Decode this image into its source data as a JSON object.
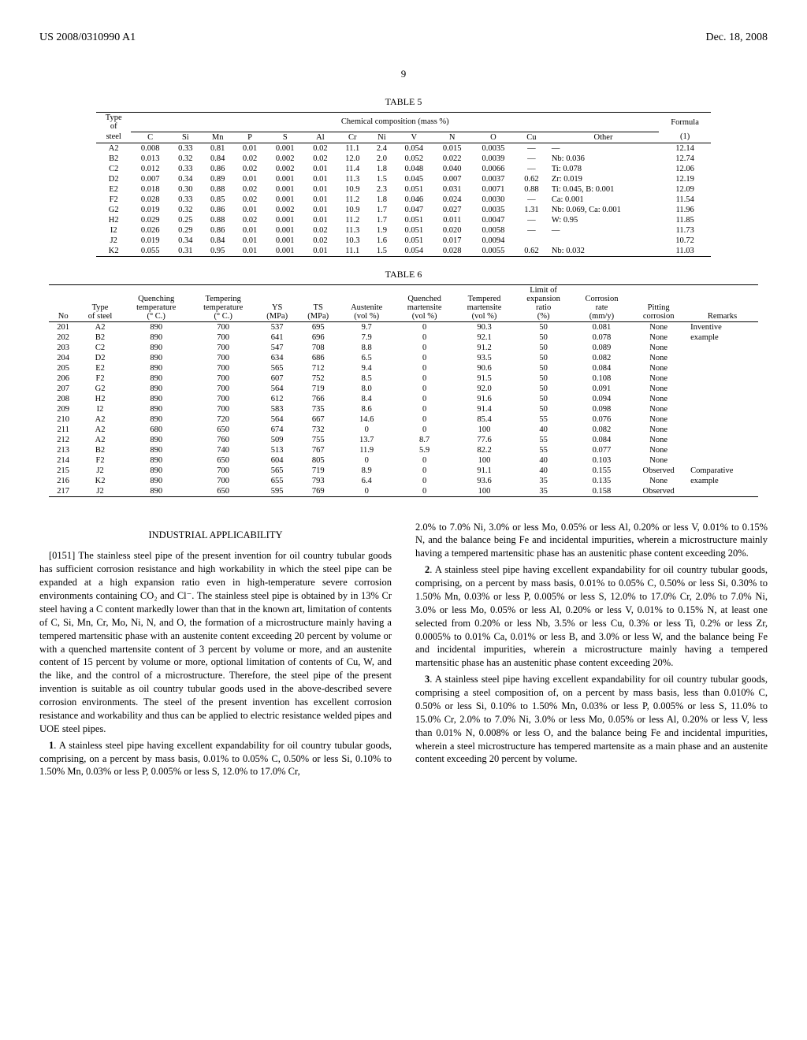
{
  "header": {
    "left": "US 2008/0310990 A1",
    "right": "Dec. 18, 2008"
  },
  "page_number": "9",
  "table5": {
    "caption": "TABLE 5",
    "group_header": "Chemical composition (mass %)",
    "formula_header": "Formula",
    "columns": [
      "Type of steel",
      "C",
      "Si",
      "Mn",
      "P",
      "S",
      "Al",
      "Cr",
      "Ni",
      "V",
      "N",
      "O",
      "Cu",
      "Other",
      "(1)"
    ],
    "rows": [
      [
        "A2",
        "0.008",
        "0.33",
        "0.81",
        "0.01",
        "0.001",
        "0.02",
        "11.1",
        "2.4",
        "0.054",
        "0.015",
        "0.0035",
        "—",
        "—",
        "12.14"
      ],
      [
        "B2",
        "0.013",
        "0.32",
        "0.84",
        "0.02",
        "0.002",
        "0.02",
        "12.0",
        "2.0",
        "0.052",
        "0.022",
        "0.0039",
        "—",
        "Nb: 0.036",
        "12.74"
      ],
      [
        "C2",
        "0.012",
        "0.33",
        "0.86",
        "0.02",
        "0.002",
        "0.01",
        "11.4",
        "1.8",
        "0.048",
        "0.040",
        "0.0066",
        "—",
        "Ti: 0.078",
        "12.06"
      ],
      [
        "D2",
        "0.007",
        "0.34",
        "0.89",
        "0.01",
        "0.001",
        "0.01",
        "11.3",
        "1.5",
        "0.045",
        "0.007",
        "0.0037",
        "0.62",
        "Zr: 0.019",
        "12.19"
      ],
      [
        "E2",
        "0.018",
        "0.30",
        "0.88",
        "0.02",
        "0.001",
        "0.01",
        "10.9",
        "2.3",
        "0.051",
        "0.031",
        "0.0071",
        "0.88",
        "Ti: 0.045, B: 0.001",
        "12.09"
      ],
      [
        "F2",
        "0.028",
        "0.33",
        "0.85",
        "0.02",
        "0.001",
        "0.01",
        "11.2",
        "1.8",
        "0.046",
        "0.024",
        "0.0030",
        "—",
        "Ca: 0.001",
        "11.54"
      ],
      [
        "G2",
        "0.019",
        "0.32",
        "0.86",
        "0.01",
        "0.002",
        "0.01",
        "10.9",
        "1.7",
        "0.047",
        "0.027",
        "0.0035",
        "1.31",
        "Nb: 0.069, Ca: 0.001",
        "11.96"
      ],
      [
        "H2",
        "0.029",
        "0.25",
        "0.88",
        "0.02",
        "0.001",
        "0.01",
        "11.2",
        "1.7",
        "0.051",
        "0.011",
        "0.0047",
        "—",
        "W: 0.95",
        "11.85"
      ],
      [
        "I2",
        "0.026",
        "0.29",
        "0.86",
        "0.01",
        "0.001",
        "0.02",
        "11.3",
        "1.9",
        "0.051",
        "0.020",
        "0.0058",
        "—",
        "—",
        "11.73"
      ],
      [
        "J2",
        "0.019",
        "0.34",
        "0.84",
        "0.01",
        "0.001",
        "0.02",
        "10.3",
        "1.6",
        "0.051",
        "0.017",
        "0.0094",
        "",
        "",
        "10.72"
      ],
      [
        "K2",
        "0.055",
        "0.31",
        "0.95",
        "0.01",
        "0.001",
        "0.01",
        "11.1",
        "1.5",
        "0.054",
        "0.028",
        "0.0055",
        "0.62",
        "Nb: 0.032",
        "11.03"
      ]
    ]
  },
  "table6": {
    "caption": "TABLE 6",
    "columns": [
      "No",
      "Type of steel",
      "Quenching temperature (° C.)",
      "Tempering temperature (° C.)",
      "YS (MPa)",
      "TS (MPa)",
      "Austenite (vol %)",
      "Quenched martensite (vol %)",
      "Tempered martensite (vol %)",
      "Limit of expansion ratio (%)",
      "Corrosion rate (mm/y)",
      "Pitting corrosion",
      "Remarks"
    ],
    "rows": [
      [
        "201",
        "A2",
        "890",
        "700",
        "537",
        "695",
        "9.7",
        "0",
        "90.3",
        "50",
        "0.081",
        "None",
        "Inventive"
      ],
      [
        "202",
        "B2",
        "890",
        "700",
        "641",
        "696",
        "7.9",
        "0",
        "92.1",
        "50",
        "0.078",
        "None",
        "example"
      ],
      [
        "203",
        "C2",
        "890",
        "700",
        "547",
        "708",
        "8.8",
        "0",
        "91.2",
        "50",
        "0.089",
        "None",
        ""
      ],
      [
        "204",
        "D2",
        "890",
        "700",
        "634",
        "686",
        "6.5",
        "0",
        "93.5",
        "50",
        "0.082",
        "None",
        ""
      ],
      [
        "205",
        "E2",
        "890",
        "700",
        "565",
        "712",
        "9.4",
        "0",
        "90.6",
        "50",
        "0.084",
        "None",
        ""
      ],
      [
        "206",
        "F2",
        "890",
        "700",
        "607",
        "752",
        "8.5",
        "0",
        "91.5",
        "50",
        "0.108",
        "None",
        ""
      ],
      [
        "207",
        "G2",
        "890",
        "700",
        "564",
        "719",
        "8.0",
        "0",
        "92.0",
        "50",
        "0.091",
        "None",
        ""
      ],
      [
        "208",
        "H2",
        "890",
        "700",
        "612",
        "766",
        "8.4",
        "0",
        "91.6",
        "50",
        "0.094",
        "None",
        ""
      ],
      [
        "209",
        "I2",
        "890",
        "700",
        "583",
        "735",
        "8.6",
        "0",
        "91.4",
        "50",
        "0.098",
        "None",
        ""
      ],
      [
        "210",
        "A2",
        "890",
        "720",
        "564",
        "667",
        "14.6",
        "0",
        "85.4",
        "55",
        "0.076",
        "None",
        ""
      ],
      [
        "211",
        "A2",
        "680",
        "650",
        "674",
        "732",
        "0",
        "0",
        "100",
        "40",
        "0.082",
        "None",
        ""
      ],
      [
        "212",
        "A2",
        "890",
        "760",
        "509",
        "755",
        "13.7",
        "8.7",
        "77.6",
        "55",
        "0.084",
        "None",
        ""
      ],
      [
        "213",
        "B2",
        "890",
        "740",
        "513",
        "767",
        "11.9",
        "5.9",
        "82.2",
        "55",
        "0.077",
        "None",
        ""
      ],
      [
        "214",
        "F2",
        "890",
        "650",
        "604",
        "805",
        "0",
        "0",
        "100",
        "40",
        "0.103",
        "None",
        ""
      ],
      [
        "215",
        "J2",
        "890",
        "700",
        "565",
        "719",
        "8.9",
        "0",
        "91.1",
        "40",
        "0.155",
        "Observed",
        "Comparative"
      ],
      [
        "216",
        "K2",
        "890",
        "700",
        "655",
        "793",
        "6.4",
        "0",
        "93.6",
        "35",
        "0.135",
        "None",
        "example"
      ],
      [
        "217",
        "J2",
        "890",
        "650",
        "595",
        "769",
        "0",
        "0",
        "100",
        "35",
        "0.158",
        "Observed",
        ""
      ]
    ]
  },
  "body": {
    "section_heading": "INDUSTRIAL APPLICABILITY",
    "para_0151_label": "[0151]",
    "para_0151": "The stainless steel pipe of the present invention for oil country tubular goods has sufficient corrosion resistance and high workability in which the steel pipe can be expanded at a high expansion ratio even in high-temperature severe corrosion environments containing CO₂ and Cl⁻. The stainless steel pipe is obtained by in 13% Cr steel having a C content markedly lower than that in the known art, limitation of contents of C, Si, Mn, Cr, Mo, Ni, N, and O, the formation of a microstructure mainly having a tempered martensitic phase with an austenite content exceeding 20 percent by volume or with a quenched martensite content of 3 percent by volume or more, and an austenite content of 15 percent by volume or more, optional limitation of contents of Cu, W, and the like, and the control of a microstructure. Therefore, the steel pipe of the present invention is suitable as oil country tubular goods used in the above-described severe corrosion environments. The steel of the present invention has excellent corrosion resistance and workability and thus can be applied to electric resistance welded pipes and UOE steel pipes.",
    "claim1_num": "1",
    "claim1": ". A stainless steel pipe having excellent expandability for oil country tubular goods, comprising, on a percent by mass basis, 0.01% to 0.05% C, 0.50% or less Si, 0.10% to 1.50% Mn, 0.03% or less P, 0.005% or less S, 12.0% to 17.0% Cr,",
    "claim1_cont": "2.0% to 7.0% Ni, 3.0% or less Mo, 0.05% or less Al, 0.20% or less V, 0.01% to 0.15% N, and the balance being Fe and incidental impurities, wherein a microstructure mainly having a tempered martensitic phase has an austenitic phase content exceeding 20%.",
    "claim2_num": "2",
    "claim2": ". A stainless steel pipe having excellent expandability for oil country tubular goods, comprising, on a percent by mass basis, 0.01% to 0.05% C, 0.50% or less Si, 0.30% to 1.50% Mn, 0.03% or less P, 0.005% or less S, 12.0% to 17.0% Cr, 2.0% to 7.0% Ni, 3.0% or less Mo, 0.05% or less Al, 0.20% or less V, 0.01% to 0.15% N, at least one selected from 0.20% or less Nb, 3.5% or less Cu, 0.3% or less Ti, 0.2% or less Zr, 0.0005% to 0.01% Ca, 0.01% or less B, and 3.0% or less W, and the balance being Fe and incidental impurities, wherein a microstructure mainly having a tempered martensitic phase has an austenitic phase content exceeding 20%.",
    "claim3_num": "3",
    "claim3": ". A stainless steel pipe having excellent expandability for oil country tubular goods, comprising a steel composition of, on a percent by mass basis, less than 0.010% C, 0.50% or less Si, 0.10% to 1.50% Mn, 0.03% or less P, 0.005% or less S, 11.0% to 15.0% Cr, 2.0% to 7.0% Ni, 3.0% or less Mo, 0.05% or less Al, 0.20% or less V, less than 0.01% N, 0.008% or less O, and the balance being Fe and incidental impurities, wherein a steel microstructure has tempered martensite as a main phase and an austenite content exceeding 20 percent by volume."
  }
}
